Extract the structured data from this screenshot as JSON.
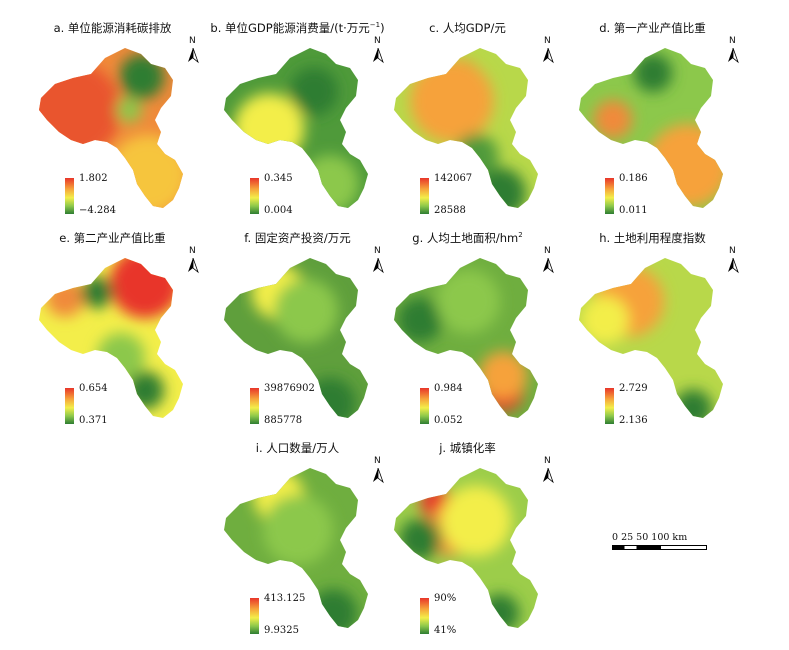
{
  "panels": [
    {
      "title": "a. 单位能源消耗碳排放",
      "legend_max": "1.802",
      "legend_min": "−4.284",
      "base": "#f08a3a",
      "blobs": [
        [
          "#e9542e",
          0.25,
          0.4,
          0.3
        ],
        [
          "#2e7d32",
          0.68,
          0.22,
          0.14
        ],
        [
          "#f6c53c",
          0.72,
          0.75,
          0.25
        ],
        [
          "#8cc84b",
          0.6,
          0.4,
          0.08
        ]
      ]
    },
    {
      "title": "b. 单位GDP能源消费量/(t·万元",
      "title_sup": "−1",
      "title_end": ")",
      "legend_max": "0.345",
      "legend_min": "0.004",
      "base": "#4f9a3a",
      "blobs": [
        [
          "#e8352a",
          0.3,
          0.42,
          0.12
        ],
        [
          "#f3ee4a",
          0.32,
          0.5,
          0.22
        ],
        [
          "#8cc84b",
          0.7,
          0.8,
          0.18
        ],
        [
          "#2e7d32",
          0.6,
          0.3,
          0.15
        ]
      ]
    },
    {
      "title": "c. 人均GDP/元",
      "legend_max": "142067",
      "legend_min": "28588",
      "base": "#b8d84a",
      "blobs": [
        [
          "#e8352a",
          0.45,
          0.25,
          0.14
        ],
        [
          "#f6a23a",
          0.4,
          0.35,
          0.26
        ],
        [
          "#2e7d32",
          0.7,
          0.85,
          0.16
        ],
        [
          "#4f9a3a",
          0.55,
          0.65,
          0.14
        ]
      ]
    },
    {
      "title": "d. 第一产业产值比重",
      "legend_max": "0.186",
      "legend_min": "0.011",
      "base": "#8cc84b",
      "blobs": [
        [
          "#e8352a",
          0.7,
          0.75,
          0.16
        ],
        [
          "#f6a23a",
          0.72,
          0.7,
          0.26
        ],
        [
          "#f08a3a",
          0.25,
          0.45,
          0.12
        ],
        [
          "#2e7d32",
          0.5,
          0.2,
          0.12
        ]
      ]
    },
    {
      "title": "e. 第二产业产值比重",
      "legend_max": "0.654",
      "legend_min": "0.371",
      "base": "#f3ee4a",
      "blobs": [
        [
          "#e8352a",
          0.7,
          0.2,
          0.22
        ],
        [
          "#f08a3a",
          0.2,
          0.28,
          0.12
        ],
        [
          "#2e7d32",
          0.4,
          0.25,
          0.1
        ],
        [
          "#2e7d32",
          0.7,
          0.78,
          0.12
        ],
        [
          "#8cc84b",
          0.55,
          0.6,
          0.15
        ]
      ]
    },
    {
      "title": "f. 固定资产投资/万元",
      "legend_max": "39876902",
      "legend_min": "885778",
      "base": "#5f9f3c",
      "blobs": [
        [
          "#e8352a",
          0.38,
          0.25,
          0.09
        ],
        [
          "#f3ee4a",
          0.38,
          0.25,
          0.17
        ],
        [
          "#8cc84b",
          0.55,
          0.35,
          0.2
        ],
        [
          "#2e7d32",
          0.7,
          0.85,
          0.16
        ]
      ]
    },
    {
      "title": "g. 人均土地面积/hm",
      "title_sup": "2",
      "title_end": "",
      "legend_max": "0.984",
      "legend_min": "0.052",
      "base": "#6fae3f",
      "blobs": [
        [
          "#e8352a",
          0.72,
          0.78,
          0.13
        ],
        [
          "#f6a23a",
          0.72,
          0.7,
          0.15
        ],
        [
          "#2e7d32",
          0.2,
          0.4,
          0.14
        ],
        [
          "#8cc84b",
          0.5,
          0.3,
          0.2
        ]
      ]
    },
    {
      "title": "h. 土地利用程度指数",
      "legend_max": "2.729",
      "legend_min": "2.136",
      "base": "#b8d84a",
      "blobs": [
        [
          "#e8352a",
          0.35,
          0.25,
          0.13
        ],
        [
          "#f6a23a",
          0.35,
          0.3,
          0.22
        ],
        [
          "#2e7d32",
          0.75,
          0.88,
          0.12
        ],
        [
          "#f3ee4a",
          0.2,
          0.4,
          0.15
        ]
      ]
    },
    {
      "title": "i. 人口数量/万人",
      "legend_max": "413.125",
      "legend_min": "9.9325",
      "base": "#6fae3f",
      "blobs": [
        [
          "#e8352a",
          0.38,
          0.22,
          0.08
        ],
        [
          "#f3ee4a",
          0.38,
          0.22,
          0.16
        ],
        [
          "#8cc84b",
          0.5,
          0.4,
          0.22
        ],
        [
          "#2e7d32",
          0.72,
          0.85,
          0.15
        ]
      ]
    },
    {
      "title": "j. 城镇化率",
      "legend_max": "90%",
      "legend_min": "41%",
      "base": "#9ccd4a",
      "blobs": [
        [
          "#e8352a",
          0.3,
          0.25,
          0.1
        ],
        [
          "#f08a3a",
          0.4,
          0.4,
          0.16
        ],
        [
          "#f3ee4a",
          0.55,
          0.35,
          0.22
        ],
        [
          "#2e7d32",
          0.2,
          0.45,
          0.13
        ],
        [
          "#2e7d32",
          0.7,
          0.85,
          0.12
        ]
      ]
    }
  ],
  "north_letter": "N",
  "scale_bar": {
    "labels": "0 25  50     100 km"
  }
}
